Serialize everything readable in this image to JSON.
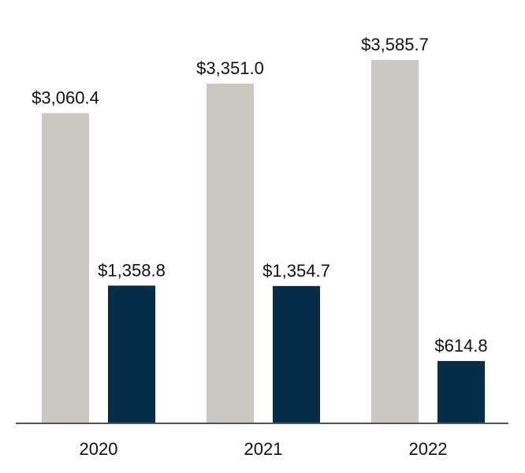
{
  "chart_data": {
    "type": "bar",
    "categories": [
      "2020",
      "2021",
      "2022"
    ],
    "series": [
      {
        "values": [
          3060.4,
          3351.0,
          3585.7
        ],
        "labels": [
          "$3,060.4",
          "$3,351.0",
          "$3,585.7"
        ],
        "color": "#cac7c2"
      },
      {
        "values": [
          1358.8,
          1354.7,
          614.8
        ],
        "labels": [
          "$1,358.8",
          "$1,354.7",
          "$614.8"
        ],
        "color": "#062d48"
      }
    ],
    "title": "",
    "xlabel": "",
    "ylabel": "",
    "ylim": [
      0,
      3585.7
    ],
    "grid": false,
    "legend": "none",
    "axis_color": "#555555"
  }
}
